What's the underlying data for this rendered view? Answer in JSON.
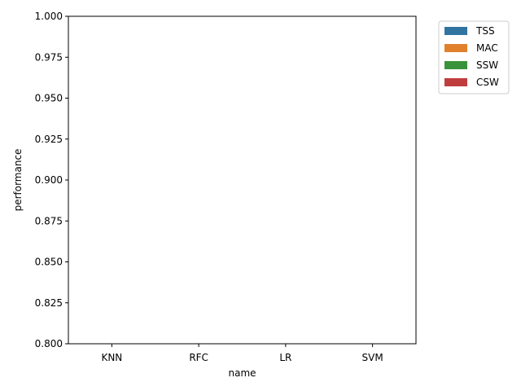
{
  "chart_data": {
    "type": "bar",
    "title": "",
    "xlabel": "name",
    "ylabel": "performance",
    "categories": [
      "KNN",
      "RFC",
      "LR",
      "SVM"
    ],
    "ylim": [
      0.8,
      1.0
    ],
    "yticks": [
      "0.800",
      "0.825",
      "0.850",
      "0.875",
      "0.900",
      "0.925",
      "0.950",
      "0.975",
      "1.000"
    ],
    "grid": false,
    "legend_position": "outside-top-right",
    "series": [
      {
        "name": "TSS",
        "color": "#3274a1",
        "values": [
          null,
          null,
          null,
          null
        ]
      },
      {
        "name": "MAC",
        "color": "#e1812c",
        "values": [
          null,
          null,
          null,
          null
        ]
      },
      {
        "name": "SSW",
        "color": "#3a923a",
        "values": [
          null,
          null,
          null,
          null
        ]
      },
      {
        "name": "CSW",
        "color": "#c03d3e",
        "values": [
          null,
          null,
          null,
          null
        ]
      }
    ]
  }
}
